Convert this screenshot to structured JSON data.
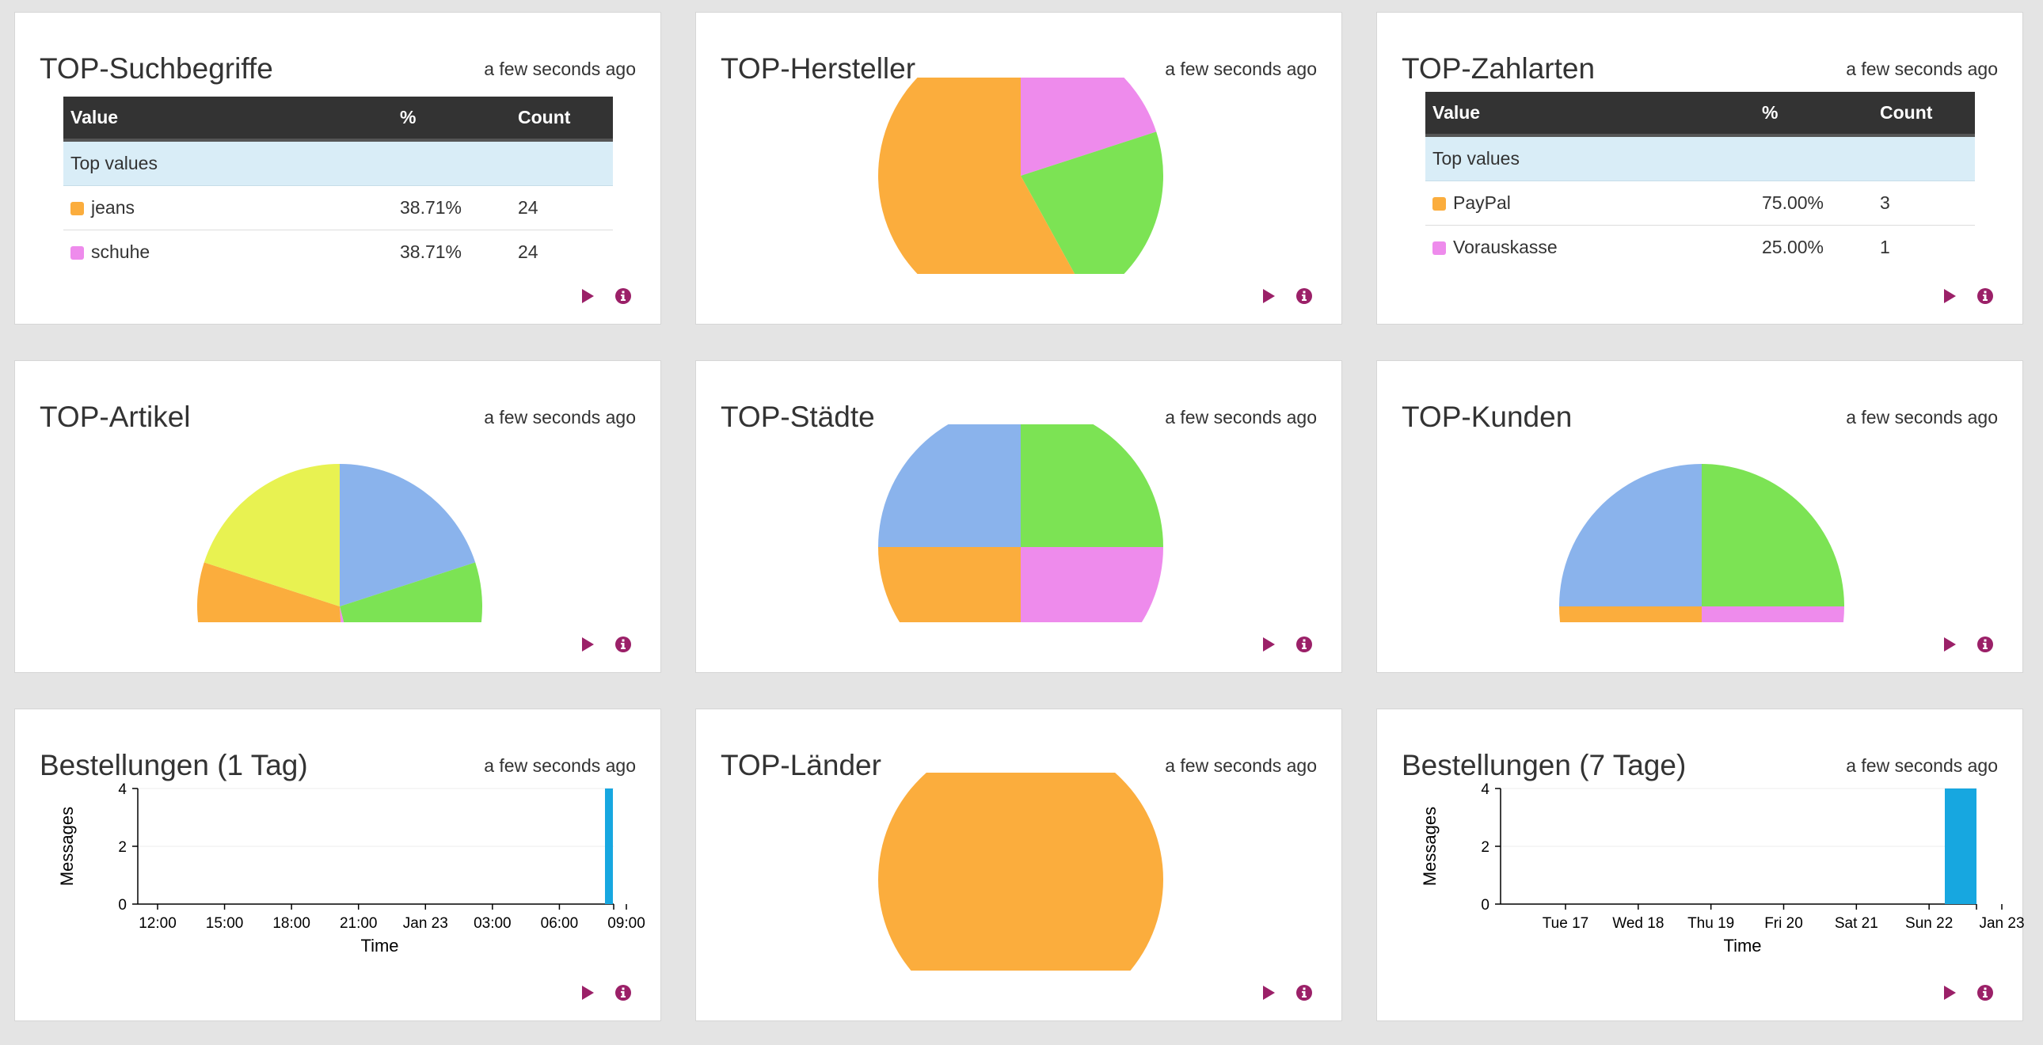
{
  "colors": {
    "orange": "#fbad3d",
    "pink": "#ee8bec",
    "green": "#7ce354",
    "blue": "#8ab3ec",
    "yellow": "#e8f251",
    "bar": "#17a7e0",
    "action": "#9b2068"
  },
  "icons": {
    "play": "play-icon",
    "info": "info-icon"
  },
  "widgets": {
    "suchbegriffe": {
      "title": "TOP-Suchbegriffe",
      "time": "a few seconds ago",
      "headers": [
        "Value",
        "%",
        "Count"
      ],
      "group": "Top values",
      "rows": [
        {
          "label": "jeans",
          "pct": "38.71%",
          "count": "24",
          "color": "#fbad3d"
        },
        {
          "label": "schuhe",
          "pct": "38.71%",
          "count": "24",
          "color": "#ee8bec"
        }
      ]
    },
    "hersteller": {
      "title": "TOP-Hersteller",
      "time": "a few seconds ago",
      "chart_data": {
        "type": "pie",
        "slices": [
          {
            "value": 0.2,
            "color": "#ee8bec"
          },
          {
            "value": 0.22,
            "color": "#7ce354"
          },
          {
            "value": 0.58,
            "color": "#fbad3d"
          }
        ]
      }
    },
    "zahlarten": {
      "title": "TOP-Zahlarten",
      "time": "a few seconds ago",
      "headers": [
        "Value",
        "%",
        "Count"
      ],
      "group": "Top values",
      "rows": [
        {
          "label": "PayPal",
          "pct": "75.00%",
          "count": "3",
          "color": "#fbad3d"
        },
        {
          "label": "Vorauskasse",
          "pct": "25.00%",
          "count": "1",
          "color": "#ee8bec"
        }
      ]
    },
    "artikel": {
      "title": "TOP-Artikel",
      "time": "a few seconds ago",
      "chart_data": {
        "type": "pie",
        "slices": [
          {
            "value": 0.2,
            "color": "#8ab3ec"
          },
          {
            "value": 0.26,
            "color": "#7ce354"
          },
          {
            "value": 0.03,
            "color": "#ee8bec"
          },
          {
            "value": 0.31,
            "color": "#fbad3d"
          },
          {
            "value": 0.2,
            "color": "#e8f251"
          }
        ]
      }
    },
    "staedte": {
      "title": "TOP-Städte",
      "time": "a few seconds ago",
      "chart_data": {
        "type": "pie",
        "slices": [
          {
            "value": 0.25,
            "color": "#7ce354"
          },
          {
            "value": 0.25,
            "color": "#ee8bec"
          },
          {
            "value": 0.25,
            "color": "#fbad3d"
          },
          {
            "value": 0.25,
            "color": "#8ab3ec"
          }
        ]
      }
    },
    "kunden": {
      "title": "TOP-Kunden",
      "time": "a few seconds ago",
      "chart_data": {
        "type": "pie",
        "slices": [
          {
            "value": 0.25,
            "color": "#7ce354"
          },
          {
            "value": 0.25,
            "color": "#ee8bec"
          },
          {
            "value": 0.25,
            "color": "#fbad3d"
          },
          {
            "value": 0.25,
            "color": "#8ab3ec"
          }
        ]
      }
    },
    "bestellungen1": {
      "title": "Bestellungen (1 Tag)",
      "time": "a few seconds ago",
      "chart_data": {
        "type": "bar",
        "xlabel": "Time",
        "ylabel": "Messages",
        "ylim": [
          0,
          4
        ],
        "yticks": [
          "0",
          "2",
          "4"
        ],
        "xticks": [
          "12:00",
          "15:00",
          "18:00",
          "21:00",
          "Jan 23",
          "03:00",
          "06:00",
          "09:00"
        ],
        "bars": [
          {
            "x": "10:55",
            "value": 4
          }
        ]
      }
    },
    "laender": {
      "title": "TOP-Länder",
      "time": "a few seconds ago",
      "chart_data": {
        "type": "pie",
        "slices": [
          {
            "value": 1.0,
            "color": "#fbad3d"
          }
        ]
      }
    },
    "bestellungen7": {
      "title": "Bestellungen (7 Tage)",
      "time": "a few seconds ago",
      "chart_data": {
        "type": "bar",
        "xlabel": "Time",
        "ylabel": "Messages",
        "ylim": [
          0,
          4
        ],
        "yticks": [
          "0",
          "2",
          "4"
        ],
        "xticks": [
          "Tue 17",
          "Wed 18",
          "Thu 19",
          "Fri 20",
          "Sat 21",
          "Sun 22",
          "Jan 23"
        ],
        "bars": [
          {
            "x": "Jan 23",
            "value": 4
          }
        ]
      }
    }
  }
}
